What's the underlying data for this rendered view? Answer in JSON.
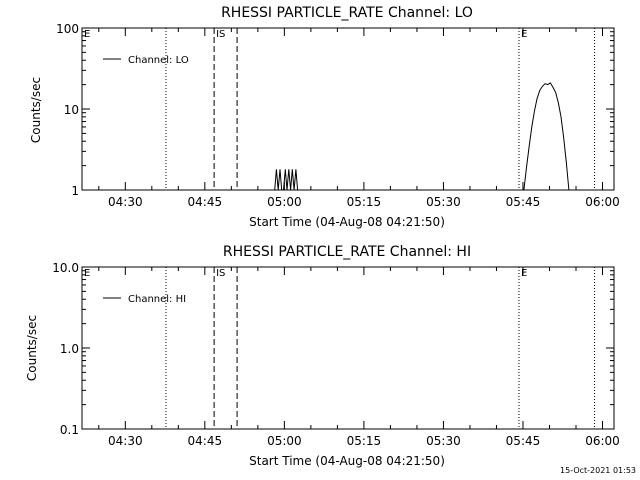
{
  "footer": {
    "timestamp": "15-Oct-2021 01:53"
  },
  "chart_data": [
    {
      "type": "line",
      "title": "RHESSI PARTICLE_RATE Channel: LO",
      "xlabel": "Start Time (04-Aug-08 04:21:50)",
      "ylabel": "Counts/sec",
      "y_scale": "log",
      "ylim": [
        1,
        100
      ],
      "y_ticks": [
        "1",
        "10",
        "100"
      ],
      "x_ticks": [
        "04:30",
        "04:45",
        "05:00",
        "05:15",
        "05:30",
        "05:45",
        "06:00"
      ],
      "legend": {
        "entries": [
          "Channel: LO"
        ],
        "position": "top-left"
      },
      "markers": [
        {
          "label": "E",
          "style": "dotted",
          "at": "04:21:50"
        },
        {
          "label": "",
          "style": "dotted",
          "at": "04:37:40"
        },
        {
          "label": "IS",
          "style": "dashed",
          "at": "04:46:45"
        },
        {
          "label": "",
          "style": "dashed",
          "at": "04:51:05"
        },
        {
          "label": "E",
          "style": "dotted",
          "at": "05:44:15"
        },
        {
          "label": "",
          "style": "dotted",
          "at": "05:58:30"
        }
      ],
      "series": [
        {
          "name": "Channel: LO",
          "segments": [
            [
              [
                "04:58:10",
                1
              ],
              [
                "04:58:30",
                1.8
              ],
              [
                "04:58:50",
                1
              ],
              [
                "04:59:10",
                1.8
              ],
              [
                "04:59:30",
                1
              ],
              [
                "04:59:50",
                1
              ],
              [
                "05:00:10",
                1.8
              ],
              [
                "05:00:30",
                1
              ],
              [
                "05:00:50",
                1.8
              ],
              [
                "05:01:10",
                1
              ],
              [
                "05:01:30",
                1.8
              ],
              [
                "05:01:50",
                1
              ],
              [
                "05:02:10",
                1.8
              ],
              [
                "05:02:30",
                1
              ]
            ],
            [
              [
                "05:45:10",
                1
              ],
              [
                "05:45:40",
                1.9
              ],
              [
                "05:46:10",
                3.5
              ],
              [
                "05:46:40",
                6
              ],
              [
                "05:47:10",
                9.5
              ],
              [
                "05:47:40",
                13.5
              ],
              [
                "05:48:10",
                17
              ],
              [
                "05:48:40",
                19
              ],
              [
                "05:49:10",
                20.5
              ],
              [
                "05:49:40",
                20
              ],
              [
                "05:50:10",
                21
              ],
              [
                "05:50:40",
                18.5
              ],
              [
                "05:51:10",
                16
              ],
              [
                "05:51:40",
                12
              ],
              [
                "05:52:10",
                8
              ],
              [
                "05:52:40",
                4.5
              ],
              [
                "05:53:10",
                2.2
              ],
              [
                "05:53:40",
                1
              ]
            ]
          ]
        }
      ]
    },
    {
      "type": "line",
      "title": "RHESSI PARTICLE_RATE Channel: HI",
      "xlabel": "Start Time (04-Aug-08 04:21:50)",
      "ylabel": "Counts/sec",
      "y_scale": "log",
      "ylim": [
        0.1,
        10
      ],
      "y_ticks": [
        "0.1",
        "1.0",
        "10.0"
      ],
      "x_ticks": [
        "04:30",
        "04:45",
        "05:00",
        "05:15",
        "05:30",
        "05:45",
        "06:00"
      ],
      "legend": {
        "entries": [
          "Channel: HI"
        ],
        "position": "top-left"
      },
      "markers": [
        {
          "label": "E",
          "style": "dotted",
          "at": "04:21:50"
        },
        {
          "label": "",
          "style": "dotted",
          "at": "04:37:40"
        },
        {
          "label": "IS",
          "style": "dashed",
          "at": "04:46:45"
        },
        {
          "label": "",
          "style": "dashed",
          "at": "04:51:05"
        },
        {
          "label": "E",
          "style": "dotted",
          "at": "05:44:15"
        },
        {
          "label": "",
          "style": "dotted",
          "at": "05:58:30"
        }
      ],
      "series": [
        {
          "name": "Channel: HI",
          "segments": []
        }
      ]
    }
  ]
}
